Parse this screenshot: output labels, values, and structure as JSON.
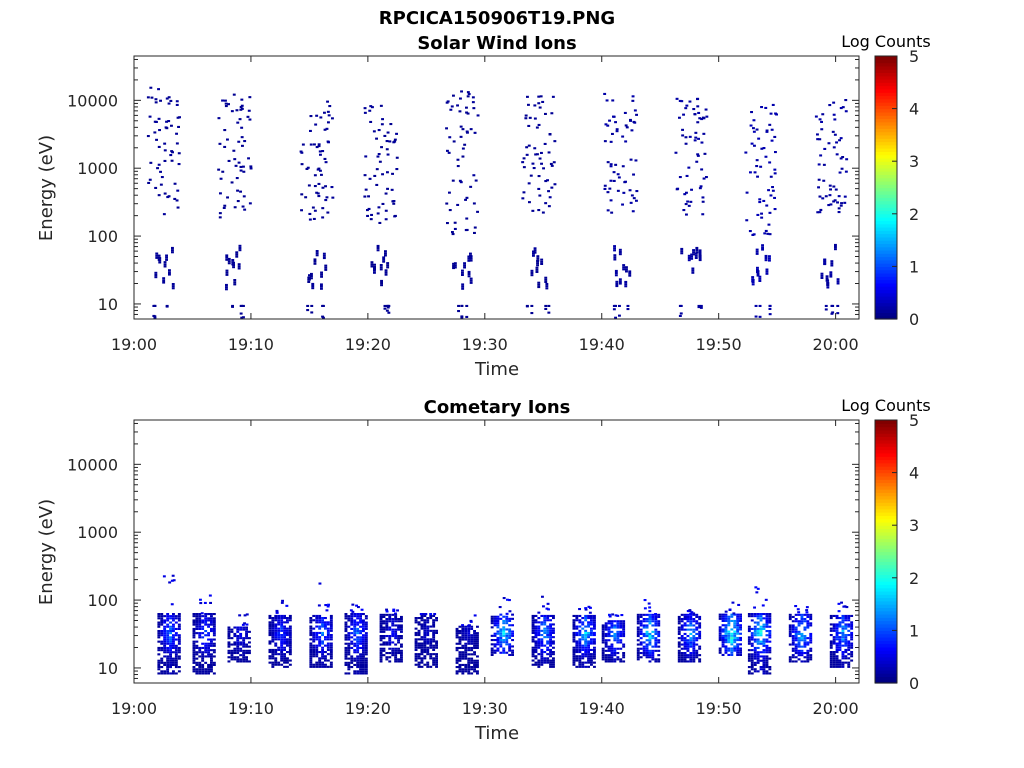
{
  "figure_title": "RPCICA150906T19.PNG",
  "colors": {
    "colormap": "jet",
    "axes_frame": "#262626",
    "background": "#ffffff"
  },
  "chart_data": [
    {
      "type": "heatmap",
      "title": "Solar Wind Ions",
      "xlabel": "Time",
      "ylabel": "Energy (eV)",
      "x_ticks": [
        "19:00",
        "19:10",
        "19:20",
        "19:30",
        "19:40",
        "19:50",
        "20:00"
      ],
      "y_ticks": [
        "10",
        "100",
        "1000",
        "10000"
      ],
      "y_scale": "log",
      "ylim": [
        6,
        45000
      ],
      "xlim": [
        "19:00",
        "20:02"
      ],
      "colorbar": {
        "title": "Log Counts",
        "ticks": [
          "0",
          "1",
          "2",
          "3",
          "4",
          "5"
        ],
        "range": [
          0,
          5
        ]
      },
      "bursts": [
        {
          "t": "19:02.5",
          "emin": 200,
          "emax": 15000,
          "level": 0.1
        },
        {
          "t": "19:08.5",
          "emin": 150,
          "emax": 12000,
          "level": 0.1
        },
        {
          "t": "19:15.5",
          "emin": 150,
          "emax": 10000,
          "level": 0.1
        },
        {
          "t": "19:21.0",
          "emin": 150,
          "emax": 9000,
          "level": 0.1
        },
        {
          "t": "19:28.0",
          "emin": 100,
          "emax": 14000,
          "level": 0.1
        },
        {
          "t": "19:34.5",
          "emin": 200,
          "emax": 12000,
          "level": 0.1
        },
        {
          "t": "19:41.5",
          "emin": 200,
          "emax": 13000,
          "level": 0.15
        },
        {
          "t": "19:47.5",
          "emin": 200,
          "emax": 11000,
          "level": 0.15
        },
        {
          "t": "19:53.5",
          "emin": 100,
          "emax": 10000,
          "level": 0.2
        },
        {
          "t": "19:59.5",
          "emin": 200,
          "emax": 11000,
          "level": 0.15
        }
      ]
    },
    {
      "type": "heatmap",
      "title": "Cometary Ions",
      "xlabel": "Time",
      "ylabel": "Energy (eV)",
      "x_ticks": [
        "19:00",
        "19:10",
        "19:20",
        "19:30",
        "19:40",
        "19:50",
        "20:00"
      ],
      "y_ticks": [
        "10",
        "100",
        "1000",
        "10000"
      ],
      "y_scale": "log",
      "ylim": [
        6,
        45000
      ],
      "xlim": [
        "19:00",
        "20:02"
      ],
      "colorbar": {
        "title": "Log Counts",
        "ticks": [
          "0",
          "1",
          "2",
          "3",
          "4",
          "5"
        ],
        "range": [
          0,
          5
        ]
      },
      "bursts": [
        {
          "t": "19:03.0",
          "emin": 8,
          "emax": 300,
          "peak": 1.2
        },
        {
          "t": "19:06.0",
          "emin": 8,
          "emax": 150,
          "peak": 1.0
        },
        {
          "t": "19:09.0",
          "emin": 12,
          "emax": 40,
          "peak": 0.6
        },
        {
          "t": "19:12.5",
          "emin": 10,
          "emax": 100,
          "peak": 0.9
        },
        {
          "t": "19:16.0",
          "emin": 10,
          "emax": 180,
          "peak": 1.2
        },
        {
          "t": "19:19.0",
          "emin": 8,
          "emax": 100,
          "peak": 1.2
        },
        {
          "t": "19:22.0",
          "emin": 12,
          "emax": 70,
          "peak": 0.6
        },
        {
          "t": "19:25.0",
          "emin": 10,
          "emax": 60,
          "peak": 0.4
        },
        {
          "t": "19:28.5",
          "emin": 8,
          "emax": 40,
          "peak": 0.4
        },
        {
          "t": "19:31.5",
          "emin": 15,
          "emax": 120,
          "peak": 1.8
        },
        {
          "t": "19:35.0",
          "emin": 10,
          "emax": 110,
          "peak": 1.4
        },
        {
          "t": "19:38.5",
          "emin": 10,
          "emax": 100,
          "peak": 1.6
        },
        {
          "t": "19:41.0",
          "emin": 12,
          "emax": 50,
          "peak": 1.3
        },
        {
          "t": "19:44.0",
          "emin": 12,
          "emax": 100,
          "peak": 1.8
        },
        {
          "t": "19:47.5",
          "emin": 12,
          "emax": 70,
          "peak": 1.4
        },
        {
          "t": "19:51.0",
          "emin": 15,
          "emax": 100,
          "peak": 2.2
        },
        {
          "t": "19:53.5",
          "emin": 8,
          "emax": 150,
          "peak": 2.0
        },
        {
          "t": "19:57.0",
          "emin": 12,
          "emax": 80,
          "peak": 1.7
        },
        {
          "t": "20:00.5",
          "emin": 10,
          "emax": 90,
          "peak": 1.5
        }
      ]
    }
  ]
}
